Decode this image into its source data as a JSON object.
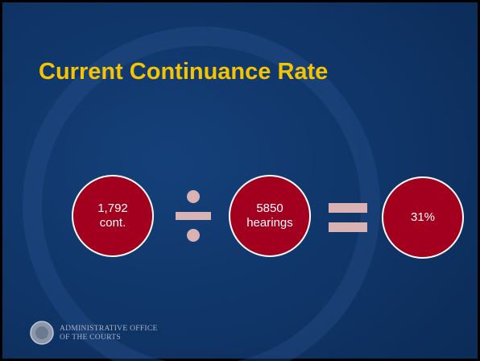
{
  "title": "Current Continuance Rate",
  "circles": [
    {
      "lines": [
        "1,792",
        "cont."
      ]
    },
    {
      "lines": [
        "5850",
        "hearings"
      ]
    },
    {
      "lines": [
        "31%"
      ]
    }
  ],
  "footer": {
    "lines": [
      "ADMINISTRATIVE OFFICE",
      "OF THE COURTS"
    ]
  }
}
